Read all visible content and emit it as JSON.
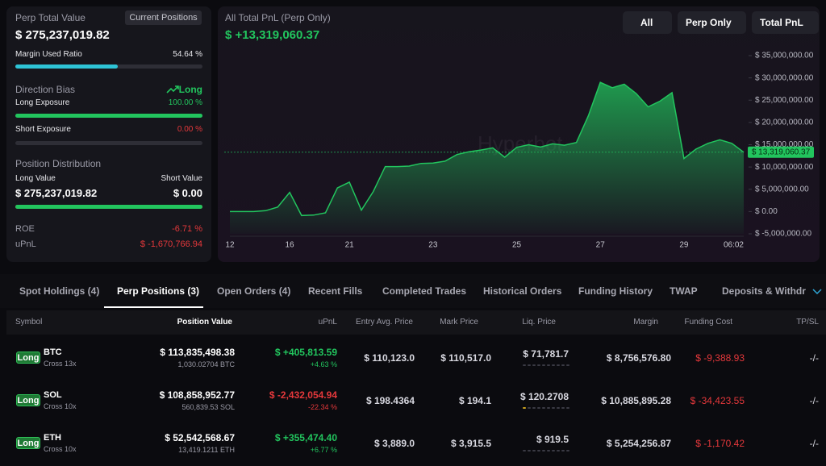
{
  "left": {
    "perp_total_value_label": "Perp Total Value",
    "current_positions": "Current Positions",
    "perp_total_value": "$ 275,237,019.82",
    "margin_used_ratio": {
      "label": "Margin Used Ratio",
      "value": {
        "value": 54.64,
        "label": "54.64 %"
      }
    },
    "direction_bias": {
      "label": "Direction Bias",
      "value": "Long"
    },
    "long_exposure": {
      "label": "Long Exposure",
      "value": {
        "value": 100,
        "label": "100.00 %"
      }
    },
    "short_exposure": {
      "label": "Short Exposure",
      "value": {
        "value": 0,
        "label": "0.00 %"
      }
    },
    "position_distribution": {
      "label": "Position Distribution",
      "long_label": "Long Value",
      "short_label": "Short Value",
      "long_value": {
        "value": 275237019.82,
        "label": "$ 275,237,019.82"
      },
      "short_value": {
        "value": 0,
        "label": "$ 0.00"
      }
    },
    "roe": {
      "label": "ROE",
      "value": "-6.71 %"
    },
    "upnl": {
      "label": "uPnL",
      "value": "$ -1,670,766.94"
    }
  },
  "chart_data": {
    "type": "area",
    "title": "All Total PnL (Perp Only)",
    "subtitle": "$ +13,319,060.37",
    "watermark": "Hyperbot",
    "annotation": "$ 13,319,060.37",
    "controls": [
      "All",
      "Perp Only",
      "Total PnL"
    ],
    "color": "#22c55e",
    "categories": [
      "12",
      null,
      null,
      null,
      null,
      "16",
      null,
      null,
      null,
      null,
      "21",
      null,
      null,
      null,
      null,
      null,
      null,
      "23",
      null,
      null,
      null,
      null,
      null,
      null,
      "25",
      null,
      null,
      null,
      null,
      null,
      null,
      "27",
      null,
      null,
      null,
      null,
      null,
      null,
      "29",
      null,
      null,
      null,
      null,
      "06:02"
    ],
    "values": [
      0,
      0,
      0,
      200000,
      1000000,
      4300000,
      -900000,
      -800000,
      -300000,
      5300000,
      6600000,
      300000,
      4500000,
      10100000,
      10100000,
      10200000,
      10800000,
      10900000,
      11300000,
      12800000,
      13400000,
      13800000,
      14300000,
      12200000,
      14400000,
      15000000,
      14500000,
      15200000,
      14900000,
      15500000,
      21500000,
      29000000,
      27800000,
      28600000,
      26500000,
      23500000,
      24800000,
      26700000,
      11900000,
      14000000,
      15300000,
      16100000,
      15300000,
      13319060.37
    ],
    "ylim": [
      -5000000,
      35000000
    ],
    "yticks": [
      {
        "value": -5000000,
        "label": "$ -5,000,000.00"
      },
      {
        "value": 0,
        "label": "$ 0.00"
      },
      {
        "value": 5000000,
        "label": "$ 5,000,000.00"
      },
      {
        "value": 10000000,
        "label": "$ 10,000,000.00"
      },
      {
        "value": 15000000,
        "label": "$ 15,000,000.00"
      },
      {
        "value": 20000000,
        "label": "$ 20,000,000.00"
      },
      {
        "value": 25000000,
        "label": "$ 25,000,000.00"
      },
      {
        "value": 30000000,
        "label": "$ 30,000,000.00"
      },
      {
        "value": 35000000,
        "label": "$ 35,000,000.00"
      }
    ]
  },
  "tabs": [
    "Spot Holdings (4)",
    "Perp Positions (3)",
    "Open Orders (4)",
    "Recent Fills",
    "Completed Trades",
    "Historical Orders",
    "Funding History",
    "TWAP",
    "Deposits & Withdraw"
  ],
  "table": {
    "headers": [
      "Symbol",
      "Position Value",
      "uPnL",
      "Entry Avg. Price",
      "Mark Price",
      "Liq. Price",
      "Margin",
      "Funding Cost",
      "TP/SL"
    ],
    "rows": [
      {
        "side": "Long",
        "symbol": "BTC",
        "leverage": "Cross 13x",
        "position_value": "$ 113,835,498.38",
        "size": "1,030.02704 BTC",
        "upnl": "$ +405,813.59",
        "upnl_pct": "+4.63 %",
        "entry": "$ 110,123.0",
        "mark": "$ 110,517.0",
        "liq": "$ 71,781.7",
        "margin": "$ 8,756,576.80",
        "funding": "$ -9,388.93",
        "tpsl": "-/-"
      },
      {
        "side": "Long",
        "symbol": "SOL",
        "leverage": "Cross 10x",
        "position_value": "$ 108,858,952.77",
        "size": "560,839.53 SOL",
        "upnl": "$ -2,432,054.94",
        "upnl_pct": "-22.34 %",
        "entry": "$ 198.4364",
        "mark": "$ 194.1",
        "liq": "$ 120.2708",
        "margin": "$ 10,885,895.28",
        "funding": "$ -34,423.55",
        "tpsl": "-/-"
      },
      {
        "side": "Long",
        "symbol": "ETH",
        "leverage": "Cross 10x",
        "position_value": "$ 52,542,568.67",
        "size": "13,419.1211 ETH",
        "upnl": "$ +355,474.40",
        "upnl_pct": "+6.77 %",
        "entry": "$ 3,889.0",
        "mark": "$ 3,915.5",
        "liq": "$ 919.5",
        "margin": "$ 5,254,256.87",
        "funding": "$ -1,170.42",
        "tpsl": "-/-"
      }
    ]
  }
}
